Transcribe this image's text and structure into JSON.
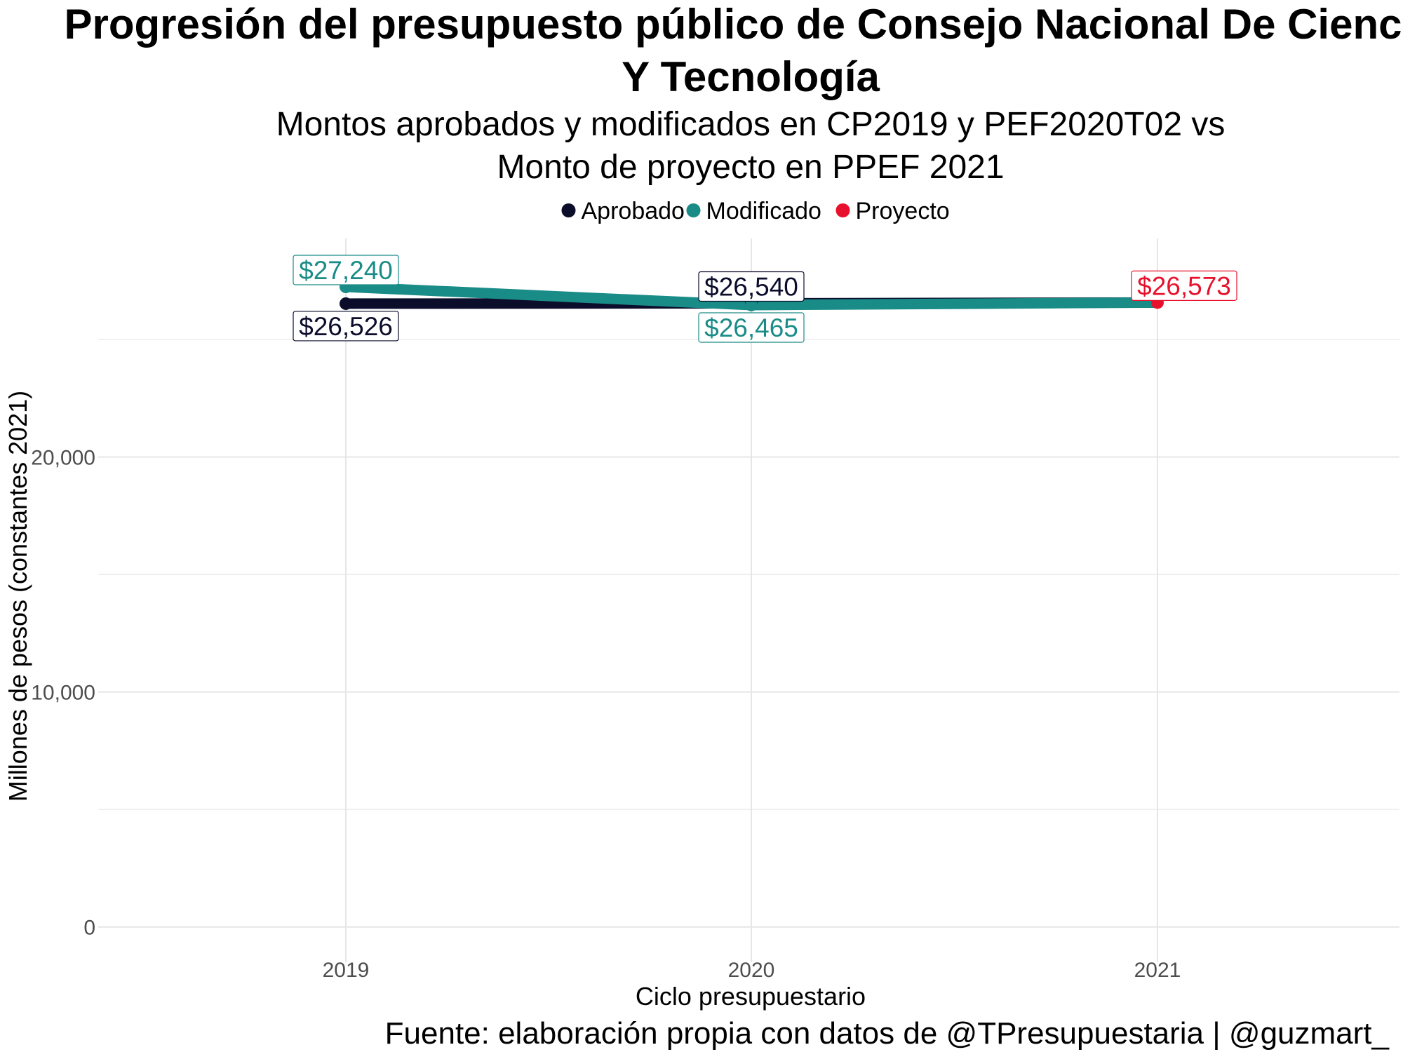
{
  "chart_data": {
    "type": "line",
    "title": "Progresión del presupuesto público de Consejo Nacional De Ciencia Y Tecnología",
    "title_lines": [
      "Progresión del presupuesto público de Consejo Nacional De Ciencia",
      "Y Tecnología"
    ],
    "subtitle": "Montos aprobados y modificados en CP2019 y PEF2020T02 vs Monto de proyecto en PPEF 2021",
    "subtitle_lines": [
      "Montos aprobados y modificados en CP2019 y PEF2020T02 vs",
      "Monto de proyecto en PPEF 2021"
    ],
    "xlabel": "Ciclo presupuestario",
    "ylabel": "Millones de pesos (constantes 2021)",
    "caption": "Fuente: elaboración propia con datos de @TPresupuestaria | @guzmart_",
    "categories": [
      "2019",
      "2020",
      "2021"
    ],
    "y_ticks": [
      0,
      10000,
      20000
    ],
    "y_tick_labels": [
      "0",
      "10,000",
      "20,000"
    ],
    "ylim": [
      -1500,
      29300
    ],
    "grid": true,
    "legend_position": "top",
    "series": [
      {
        "name": "Aprobado",
        "color": "#0b0d2b",
        "points": [
          {
            "x": "2019",
            "y": 26526,
            "label": "$26,526"
          },
          {
            "x": "2020",
            "y": 26540,
            "label": "$26,540"
          },
          {
            "x": "2021",
            "y": 26573
          }
        ]
      },
      {
        "name": "Modificado",
        "color": "#1a8c87",
        "points": [
          {
            "x": "2019",
            "y": 27240,
            "label": "$27,240"
          },
          {
            "x": "2020",
            "y": 26465,
            "label": "$26,465"
          },
          {
            "x": "2021",
            "y": 26573
          }
        ]
      },
      {
        "name": "Proyecto",
        "color": "#e8112d",
        "points": [
          {
            "x": "2021",
            "y": 26573,
            "label": "$26,573"
          }
        ]
      }
    ]
  }
}
